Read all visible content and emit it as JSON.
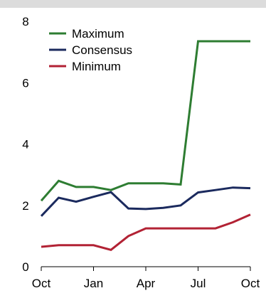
{
  "chart_data": {
    "type": "line",
    "title": "",
    "xlabel": "",
    "ylabel": "",
    "ylim": [
      0,
      8
    ],
    "xlim": [
      "Oct",
      "Oct"
    ],
    "yticks": [
      0,
      2,
      4,
      6,
      8
    ],
    "xticks": [
      "Oct",
      "Jan",
      "Apr",
      "Jul",
      "Oct"
    ],
    "grid": false,
    "legend": "top-left",
    "series": [
      {
        "name": "Maximum",
        "color": "#2e7d32",
        "points": [
          {
            "x": "Oct",
            "y": 2.15
          },
          {
            "x": "Nov",
            "y": 2.8
          },
          {
            "x": "Dec",
            "y": 2.6
          },
          {
            "x": "Jan",
            "y": 2.6
          },
          {
            "x": "Feb",
            "y": 2.5
          },
          {
            "x": "Mar",
            "y": 2.72
          },
          {
            "x": "Apr",
            "y": 2.72
          },
          {
            "x": "May",
            "y": 2.72
          },
          {
            "x": "Jun",
            "y": 2.68
          },
          {
            "x": "Jul",
            "y": 7.35
          },
          {
            "x": "Aug",
            "y": 7.35
          },
          {
            "x": "Sep",
            "y": 7.35
          },
          {
            "x": "Oct",
            "y": 7.35
          }
        ]
      },
      {
        "name": "Consensus",
        "color": "#1b2a5e",
        "points": [
          {
            "x": "Oct",
            "y": 1.65
          },
          {
            "x": "Nov",
            "y": 2.25
          },
          {
            "x": "Dec",
            "y": 2.12
          },
          {
            "x": "Jan",
            "y": 2.28
          },
          {
            "x": "Feb",
            "y": 2.43
          },
          {
            "x": "Mar",
            "y": 1.9
          },
          {
            "x": "Apr",
            "y": 1.88
          },
          {
            "x": "May",
            "y": 1.92
          },
          {
            "x": "Jun",
            "y": 2.0
          },
          {
            "x": "Jul",
            "y": 2.42
          },
          {
            "x": "Aug",
            "y": 2.5
          },
          {
            "x": "Sep",
            "y": 2.58
          },
          {
            "x": "Oct",
            "y": 2.56
          }
        ]
      },
      {
        "name": "Minimum",
        "color": "#b22234",
        "points": [
          {
            "x": "Oct",
            "y": 0.65
          },
          {
            "x": "Nov",
            "y": 0.7
          },
          {
            "x": "Dec",
            "y": 0.7
          },
          {
            "x": "Jan",
            "y": 0.7
          },
          {
            "x": "Feb",
            "y": 0.55
          },
          {
            "x": "Mar",
            "y": 1.0
          },
          {
            "x": "Apr",
            "y": 1.25
          },
          {
            "x": "May",
            "y": 1.25
          },
          {
            "x": "Jun",
            "y": 1.25
          },
          {
            "x": "Jul",
            "y": 1.25
          },
          {
            "x": "Aug",
            "y": 1.25
          },
          {
            "x": "Sep",
            "y": 1.45
          },
          {
            "x": "Oct",
            "y": 1.7
          }
        ]
      }
    ]
  }
}
